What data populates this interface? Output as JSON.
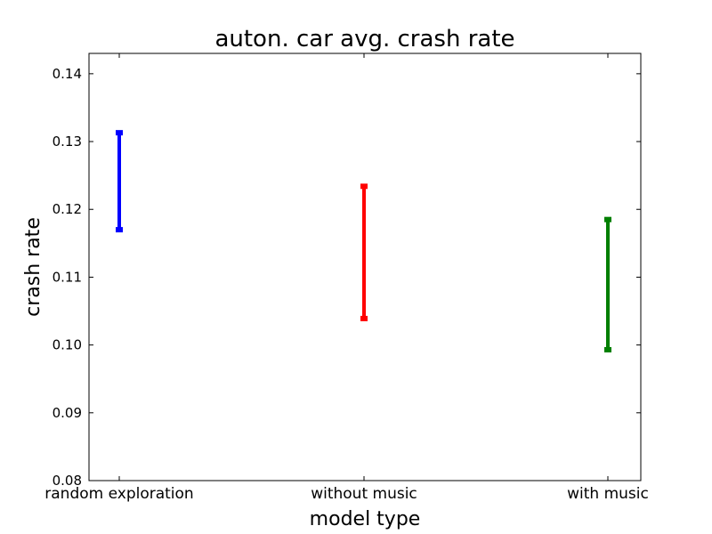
{
  "chart_data": {
    "type": "errorbar",
    "title": "auton. car avg. crash rate",
    "xlabel": "model type",
    "ylabel": "crash rate",
    "categories": [
      "random exploration",
      "without music",
      "with music"
    ],
    "ylim": [
      0.08,
      0.143
    ],
    "yticks": [
      "0.08",
      "0.09",
      "0.10",
      "0.11",
      "0.12",
      "0.13",
      "0.14"
    ],
    "grid": false,
    "series": [
      {
        "category": "random exploration",
        "low": 0.117,
        "high": 0.1313,
        "color": "#0000ff"
      },
      {
        "category": "without music",
        "low": 0.1039,
        "high": 0.1234,
        "color": "#ff0000"
      },
      {
        "category": "with music",
        "low": 0.0993,
        "high": 0.1185,
        "color": "#007f00"
      }
    ]
  }
}
